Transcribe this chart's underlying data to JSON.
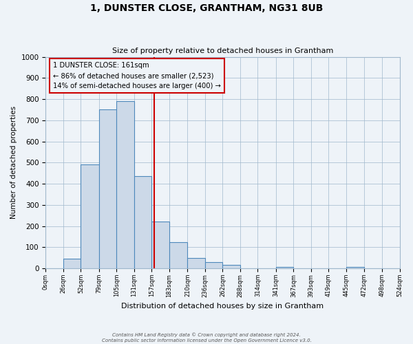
{
  "title": "1, DUNSTER CLOSE, GRANTHAM, NG31 8UB",
  "subtitle": "Size of property relative to detached houses in Grantham",
  "xlabel": "Distribution of detached houses by size in Grantham",
  "ylabel": "Number of detached properties",
  "bin_edges": [
    0,
    26,
    52,
    79,
    105,
    131,
    157,
    183,
    210,
    236,
    262,
    288,
    314,
    341,
    367,
    393,
    419,
    445,
    472,
    498,
    524
  ],
  "bar_heights": [
    0,
    45,
    490,
    750,
    790,
    435,
    220,
    125,
    50,
    30,
    15,
    0,
    0,
    5,
    0,
    0,
    0,
    5,
    0,
    0
  ],
  "bar_color": "#ccd9e8",
  "bar_edgecolor": "#4d88bb",
  "vline_x": 161,
  "vline_color": "#cc0000",
  "ylim": [
    0,
    1000
  ],
  "yticks": [
    0,
    100,
    200,
    300,
    400,
    500,
    600,
    700,
    800,
    900,
    1000
  ],
  "annotation_title": "1 DUNSTER CLOSE: 161sqm",
  "annotation_line1": "← 86% of detached houses are smaller (2,523)",
  "annotation_line2": "14% of semi-detached houses are larger (400) →",
  "annotation_box_edgecolor": "#cc0000",
  "tick_labels": [
    "0sqm",
    "26sqm",
    "52sqm",
    "79sqm",
    "105sqm",
    "131sqm",
    "157sqm",
    "183sqm",
    "210sqm",
    "236sqm",
    "262sqm",
    "288sqm",
    "314sqm",
    "341sqm",
    "367sqm",
    "393sqm",
    "419sqm",
    "445sqm",
    "472sqm",
    "498sqm",
    "524sqm"
  ],
  "background_color": "#eef3f8",
  "grid_color": "#a0b8cc",
  "footer_line1": "Contains HM Land Registry data © Crown copyright and database right 2024.",
  "footer_line2": "Contains public sector information licensed under the Open Government Licence v3.0."
}
